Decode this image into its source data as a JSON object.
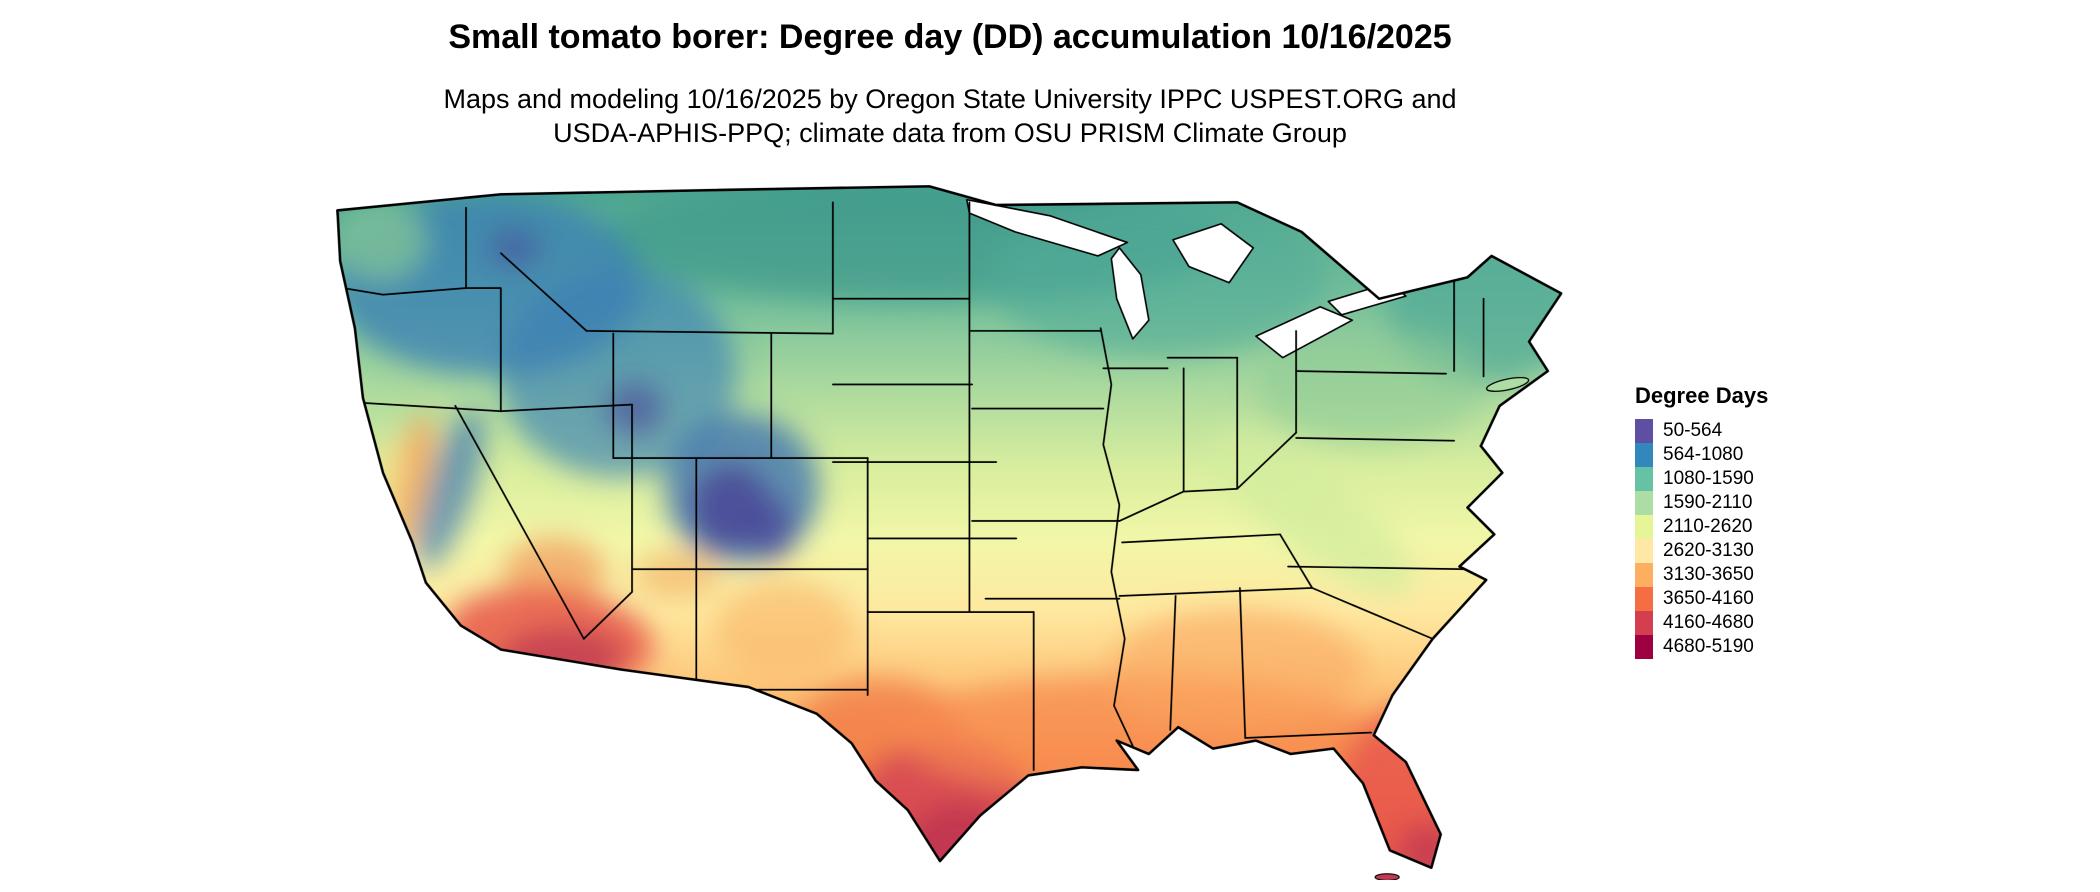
{
  "header": {
    "title": "Small tomato borer: Degree day (DD) accumulation 10/16/2025",
    "subtitle_line1": "Maps and modeling 10/16/2025 by Oregon State University IPPC USPEST.ORG and",
    "subtitle_line2": "USDA-APHIS-PPQ; climate data from OSU PRISM Climate Group"
  },
  "legend": {
    "title": "Degree Days",
    "items": [
      {
        "label": "50-564",
        "color": "#5e4fa2"
      },
      {
        "label": "564-1080",
        "color": "#3288bd"
      },
      {
        "label": "1080-1590",
        "color": "#66c2a5"
      },
      {
        "label": "1590-2110",
        "color": "#abdda4"
      },
      {
        "label": "2110-2620",
        "color": "#e6f598"
      },
      {
        "label": "2620-3130",
        "color": "#fee8a4"
      },
      {
        "label": "3130-3650",
        "color": "#fdae61"
      },
      {
        "label": "3650-4160",
        "color": "#f46d43"
      },
      {
        "label": "4160-4680",
        "color": "#d53e4f"
      },
      {
        "label": "4680-5190",
        "color": "#9e0142"
      }
    ]
  }
}
